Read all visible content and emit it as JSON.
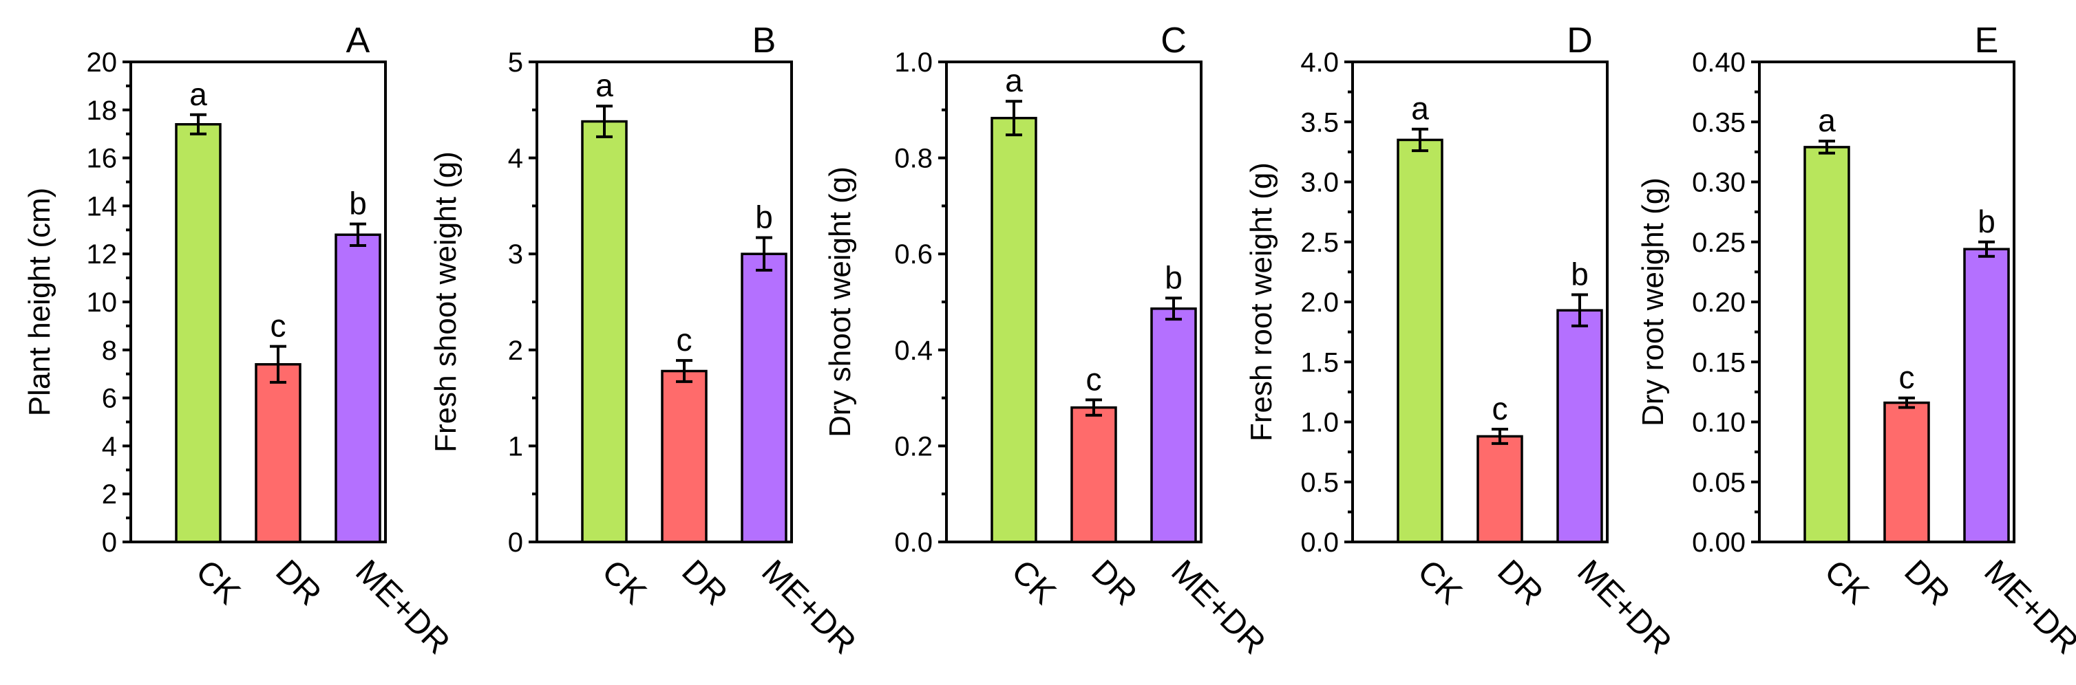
{
  "figure": {
    "categories": [
      "CK",
      "DR",
      "ME+DR"
    ],
    "bar_colors": [
      "#b8e65c",
      "#ff6b6b",
      "#b470ff"
    ]
  },
  "chart_data": [
    {
      "type": "bar",
      "panel": "A",
      "ylabel": "Plant height (cm)",
      "categories": [
        "CK",
        "DR",
        "ME+DR"
      ],
      "values": [
        17.4,
        7.4,
        12.8
      ],
      "errors": [
        0.4,
        0.75,
        0.45
      ],
      "significance": [
        "a",
        "c",
        "b"
      ],
      "ylim": [
        0,
        20
      ],
      "yticks": [
        "0",
        "2",
        "4",
        "6",
        "8",
        "10",
        "12",
        "14",
        "16",
        "18",
        "20"
      ]
    },
    {
      "type": "bar",
      "panel": "B",
      "ylabel": "Fresh shoot weight (g)",
      "categories": [
        "CK",
        "DR",
        "ME+DR"
      ],
      "values": [
        4.38,
        1.78,
        3.0
      ],
      "errors": [
        0.16,
        0.11,
        0.17
      ],
      "significance": [
        "a",
        "c",
        "b"
      ],
      "ylim": [
        0,
        5
      ],
      "yticks": [
        "0",
        "1",
        "2",
        "3",
        "4",
        "5"
      ]
    },
    {
      "type": "bar",
      "panel": "C",
      "ylabel": "Dry shoot weight (g)",
      "categories": [
        "CK",
        "DR",
        "ME+DR"
      ],
      "values": [
        0.883,
        0.28,
        0.486
      ],
      "errors": [
        0.035,
        0.016,
        0.022
      ],
      "significance": [
        "a",
        "c",
        "b"
      ],
      "ylim": [
        0,
        1.0
      ],
      "yticks": [
        "0.0",
        "0.2",
        "0.4",
        "0.6",
        "0.8",
        "1.0"
      ]
    },
    {
      "type": "bar",
      "panel": "D",
      "ylabel": "Fresh root weight (g)",
      "categories": [
        "CK",
        "DR",
        "ME+DR"
      ],
      "values": [
        3.35,
        0.88,
        1.93
      ],
      "errors": [
        0.09,
        0.06,
        0.13
      ],
      "significance": [
        "a",
        "c",
        "b"
      ],
      "ylim": [
        0,
        4.0
      ],
      "yticks": [
        "0.0",
        "0.5",
        "1.0",
        "1.5",
        "2.0",
        "2.5",
        "3.0",
        "3.5",
        "4.0"
      ]
    },
    {
      "type": "bar",
      "panel": "E",
      "ylabel": "Dry root weight (g)",
      "categories": [
        "CK",
        "DR",
        "ME+DR"
      ],
      "values": [
        0.329,
        0.116,
        0.244
      ],
      "errors": [
        0.005,
        0.004,
        0.006
      ],
      "significance": [
        "a",
        "c",
        "b"
      ],
      "ylim": [
        0,
        0.4
      ],
      "yticks": [
        "0.00",
        "0.05",
        "0.10",
        "0.15",
        "0.20",
        "0.25",
        "0.30",
        "0.35",
        "0.40"
      ]
    }
  ]
}
